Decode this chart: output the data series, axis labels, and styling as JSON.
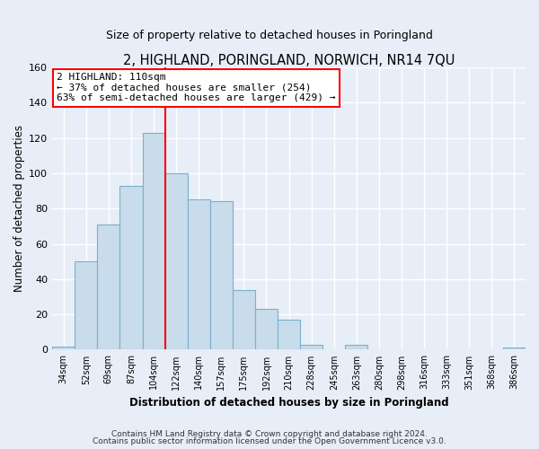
{
  "title": "2, HIGHLAND, PORINGLAND, NORWICH, NR14 7QU",
  "subtitle": "Size of property relative to detached houses in Poringland",
  "xlabel": "Distribution of detached houses by size in Poringland",
  "ylabel": "Number of detached properties",
  "footer_lines": [
    "Contains HM Land Registry data © Crown copyright and database right 2024.",
    "Contains public sector information licensed under the Open Government Licence v3.0."
  ],
  "bin_labels": [
    "34sqm",
    "52sqm",
    "69sqm",
    "87sqm",
    "104sqm",
    "122sqm",
    "140sqm",
    "157sqm",
    "175sqm",
    "192sqm",
    "210sqm",
    "228sqm",
    "245sqm",
    "263sqm",
    "280sqm",
    "298sqm",
    "316sqm",
    "333sqm",
    "351sqm",
    "368sqm",
    "386sqm"
  ],
  "bar_heights": [
    2,
    50,
    71,
    93,
    123,
    100,
    85,
    84,
    34,
    23,
    17,
    3,
    0,
    3,
    0,
    0,
    0,
    0,
    0,
    0,
    1
  ],
  "bar_color": "#c8dcec",
  "bar_edge_color": "#7ab0cc",
  "vline_x_index": 4,
  "vline_color": "red",
  "ylim": [
    0,
    160
  ],
  "yticks": [
    0,
    20,
    40,
    60,
    80,
    100,
    120,
    140,
    160
  ],
  "annotation_title": "2 HIGHLAND: 110sqm",
  "annotation_line1": "← 37% of detached houses are smaller (254)",
  "annotation_line2": "63% of semi-detached houses are larger (429) →",
  "annotation_box_facecolor": "white",
  "annotation_box_edgecolor": "red",
  "bg_color": "#e8eef8",
  "title_fontsize": 10.5,
  "subtitle_fontsize": 9
}
